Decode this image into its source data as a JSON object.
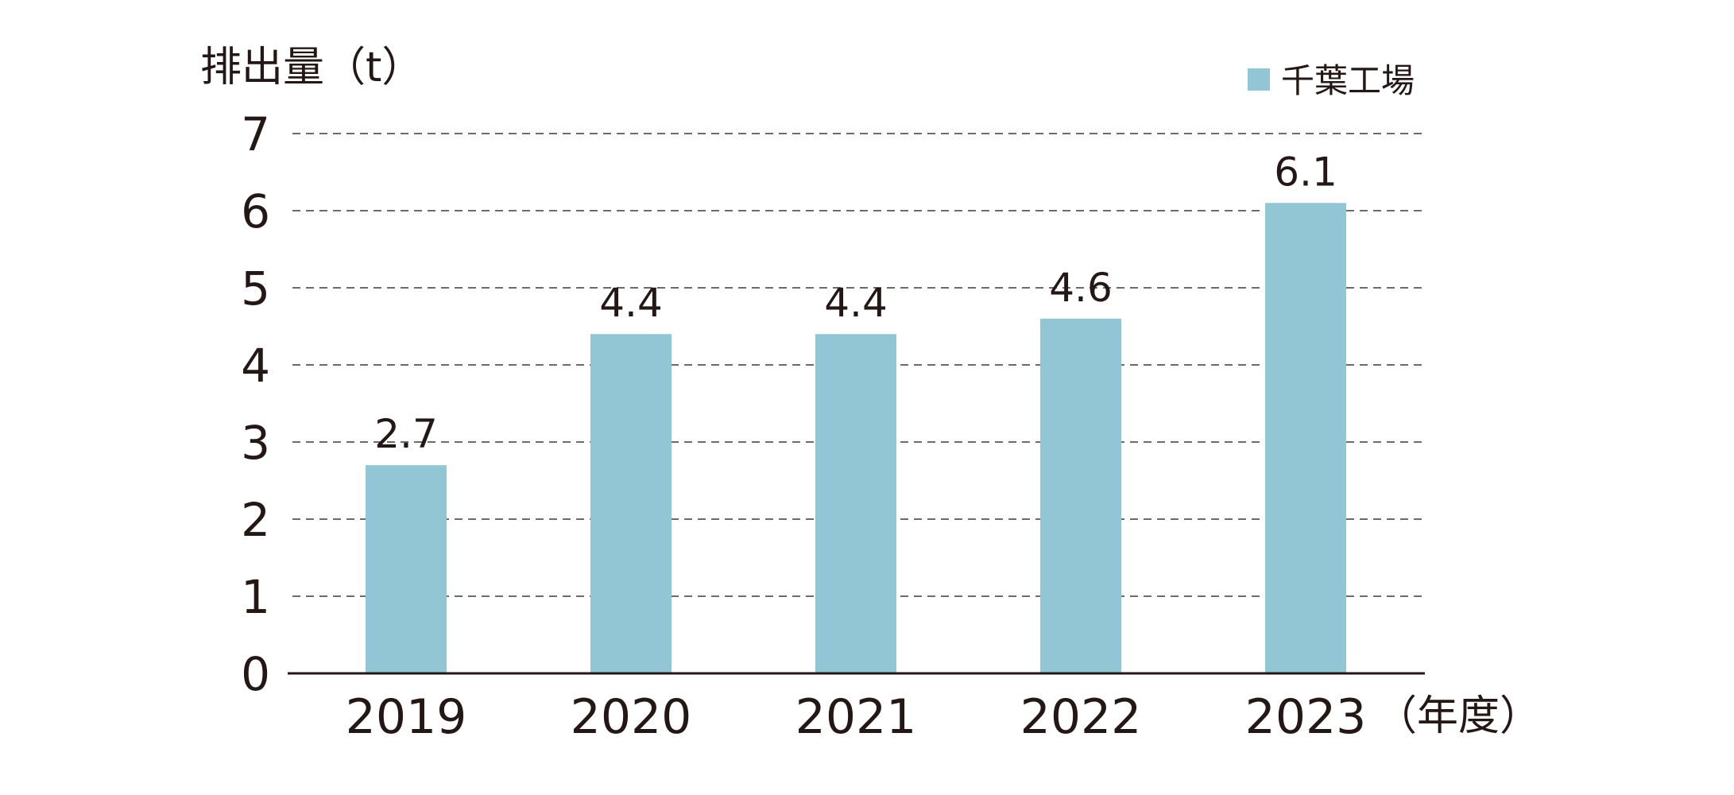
{
  "chart_data": {
    "type": "bar",
    "ylabel": "排出量（t）",
    "xunit": "（年度）",
    "categories": [
      "2019",
      "2020",
      "2021",
      "2022",
      "2023"
    ],
    "series": [
      {
        "name": "千葉工場",
        "values": [
          2.7,
          4.4,
          4.4,
          4.6,
          6.1
        ],
        "color": "#93c6d4"
      }
    ],
    "value_labels": [
      "2.7",
      "4.4",
      "4.4",
      "4.6",
      "6.1"
    ],
    "ylim": [
      0,
      7
    ],
    "yticks": [
      "0",
      "1",
      "2",
      "3",
      "4",
      "5",
      "6",
      "7"
    ],
    "grid": true,
    "legend_position": "top-right"
  }
}
